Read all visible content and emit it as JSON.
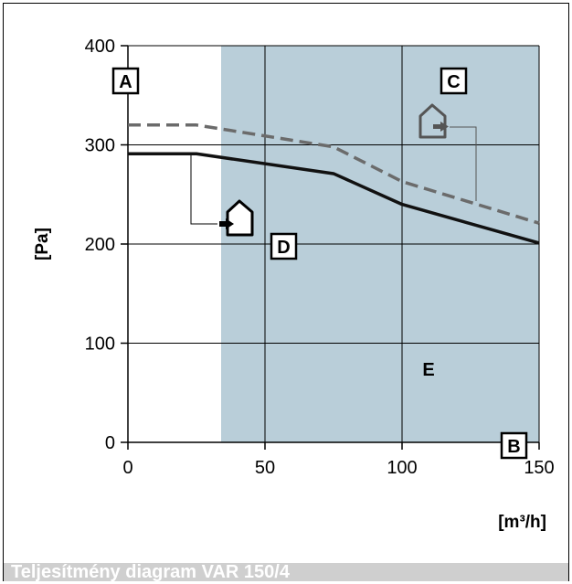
{
  "caption": "Teljesítmény diagram VAR 150/4",
  "colors": {
    "shaded_region": "#b9ced9",
    "solid_line": "#111111",
    "dashed_line": "#6b6b6b",
    "label_E": "#ffffff"
  },
  "icons": [
    "house-supply-icon",
    "house-exhaust-icon"
  ],
  "chart_data": {
    "type": "line",
    "xlabel": "[m³/h]",
    "ylabel": "[Pa]",
    "xlim": [
      0,
      150
    ],
    "ylim": [
      0,
      400
    ],
    "x_ticks": [
      "0",
      "50",
      "100",
      "150"
    ],
    "y_ticks": [
      "0",
      "100",
      "200",
      "300",
      "400"
    ],
    "x_tick_values": [
      0,
      50,
      100,
      150
    ],
    "y_tick_values": [
      0,
      100,
      200,
      300,
      400
    ],
    "grid": true,
    "shaded_region": {
      "x_from": 34,
      "x_to": 150,
      "label": "E"
    },
    "series": [
      {
        "style": "dashed",
        "x": [
          0,
          25,
          75,
          100,
          150
        ],
        "y": [
          320,
          320,
          298,
          263,
          221
        ]
      },
      {
        "style": "solid",
        "x": [
          0,
          25,
          75,
          100,
          150
        ],
        "y": [
          291,
          291,
          271,
          240,
          201
        ]
      }
    ],
    "box_labels": [
      {
        "text": "A",
        "x": 0,
        "y": 369
      },
      {
        "text": "C",
        "x": 118,
        "y": 369
      },
      {
        "text": "D",
        "x": 57,
        "y": 202
      },
      {
        "text": "B",
        "x": 141,
        "y": -4
      }
    ]
  }
}
